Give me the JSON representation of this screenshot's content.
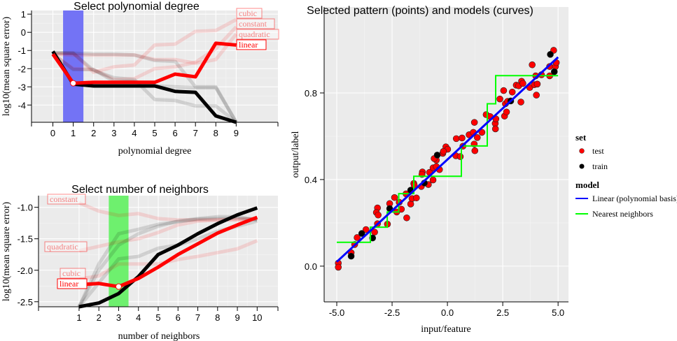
{
  "chart_data": [
    {
      "type": "line",
      "title": "Select polynomial degree",
      "xlabel": "polynomial degree",
      "ylabel": "log10(mean square error)",
      "x": [
        0,
        1,
        2,
        3,
        4,
        5,
        6,
        7,
        8,
        9
      ],
      "xticks": [
        "0",
        "1",
        "2",
        "3",
        "4",
        "5",
        "6",
        "7",
        "8",
        "9"
      ],
      "yticks": [
        "1",
        "0",
        "-1",
        "-2",
        "-3",
        "-4"
      ],
      "ytick_values": [
        1,
        0,
        -1,
        -2,
        -3,
        -4
      ],
      "xlim": [
        -1.05,
        11.05
      ],
      "ylim": [
        -4.95,
        1.2
      ],
      "selected_x": 1,
      "selected_band_color": "#7373f5",
      "grid": true,
      "series": [
        {
          "name": "cubic",
          "role": "faint-red",
          "values": [
            -1.2,
            -1.15,
            -2.2,
            -1.9,
            -1.8,
            -0.7,
            -0.65,
            0.05,
            0.1,
            0.7
          ]
        },
        {
          "name": "constant",
          "role": "faint-red",
          "values": [
            -1.2,
            -2.0,
            -2.05,
            -2.6,
            -2.55,
            -2.0,
            -1.9,
            -1.65,
            -0.9,
            0.3
          ]
        },
        {
          "name": "quadratic",
          "role": "faint-red",
          "values": [
            -1.2,
            -1.25,
            -1.25,
            -1.25,
            -1.25,
            -1.5,
            -1.5,
            -1.7,
            -1.5,
            -0.1
          ]
        },
        {
          "role": "faint-gray",
          "values": [
            -1.1,
            -1.15,
            -2.1,
            -2.5,
            -2.6,
            -3.7,
            -3.75,
            -4.05,
            -4.05,
            -4.95
          ]
        },
        {
          "role": "faint-gray",
          "values": [
            -1.2,
            -2.05,
            -2.05,
            -2.7,
            -2.7,
            -2.95,
            -3.0,
            -3.05,
            -3.05,
            -4.95
          ]
        },
        {
          "role": "faint-gray",
          "values": [
            -1.15,
            -1.15,
            -1.2,
            -1.2,
            -1.25,
            -1.55,
            -1.6,
            -3.0,
            -3.0,
            -4.95
          ]
        },
        {
          "role": "bold-black",
          "values": [
            -1.05,
            -2.85,
            -2.95,
            -2.95,
            -2.95,
            -2.95,
            -3.25,
            -3.3,
            -4.6,
            -4.95
          ]
        },
        {
          "name": "linear",
          "role": "bold-red",
          "values": [
            -1.2,
            -2.8,
            -2.75,
            -2.75,
            -2.75,
            -2.75,
            -2.3,
            -2.45,
            -0.6,
            -0.7
          ]
        }
      ],
      "labels": [
        "cubic",
        "constant",
        "quadratic",
        "linear"
      ]
    },
    {
      "type": "line",
      "title": "Select number of neighbors",
      "xlabel": "number of neighbors",
      "ylabel": "log10(mean square error)",
      "x": [
        1,
        2,
        3,
        4,
        5,
        6,
        7,
        8,
        9,
        10
      ],
      "xticks": [
        "1",
        "2",
        "3",
        "4",
        "5",
        "6",
        "7",
        "8",
        "9",
        "10"
      ],
      "yticks": [
        "-1.0",
        "-1.5",
        "-2.0",
        "-2.5"
      ],
      "ytick_values": [
        -1.0,
        -1.5,
        -2.0,
        -2.5
      ],
      "xlim": [
        -1.05,
        11.05
      ],
      "ylim": [
        -2.58,
        -0.815
      ],
      "selected_x": 3,
      "selected_band_color": "#6ef06e",
      "grid": true,
      "series": [
        {
          "name": "constant",
          "role": "faint-red",
          "values": [
            -0.93,
            -1.06,
            -1.13,
            -1.1,
            -1.18,
            -1.2,
            -1.2,
            -1.2,
            -1.2,
            -1.18
          ]
        },
        {
          "name": "quadratic",
          "role": "faint-red",
          "values": [
            -1.69,
            -1.62,
            -1.55,
            -1.5,
            -1.4,
            -1.28,
            -1.22,
            -1.2,
            -1.19,
            -1.18
          ]
        },
        {
          "name": "cubic",
          "role": "faint-red",
          "values": [
            -2.14,
            -2.09,
            -1.9,
            -1.9,
            -1.9,
            -1.83,
            -1.78,
            -1.72,
            -1.66,
            -1.53
          ]
        },
        {
          "role": "faint-gray",
          "values": [
            -2.6,
            -1.9,
            -1.42,
            -1.35,
            -1.27,
            -1.23,
            -1.19,
            -1.18,
            -1.17,
            -1.2
          ]
        },
        {
          "role": "faint-gray",
          "values": [
            -2.6,
            -2.2,
            -1.82,
            -1.78,
            -1.65,
            -1.6,
            -1.5,
            -1.38,
            -1.3,
            -1.22
          ]
        },
        {
          "role": "faint-gray",
          "values": [
            -2.6,
            -2.0,
            -1.6,
            -1.42,
            -1.3,
            -1.22,
            -1.18,
            -1.15,
            -1.15,
            -1.2
          ]
        },
        {
          "role": "bold-black",
          "values": [
            -2.6,
            -2.52,
            -2.37,
            -2.1,
            -1.75,
            -1.6,
            -1.42,
            -1.26,
            -1.12,
            -1.01
          ]
        },
        {
          "name": "linear",
          "role": "bold-red",
          "values": [
            -2.23,
            -2.21,
            -2.26,
            -2.13,
            -1.95,
            -1.75,
            -1.58,
            -1.41,
            -1.28,
            -1.16
          ]
        }
      ],
      "labels": [
        "constant",
        "quadratic",
        "cubic",
        "linear"
      ]
    },
    {
      "type": "scatter",
      "title": "Selected pattern (points) and models (curves)",
      "xlabel": "input/feature",
      "ylabel": "output/label",
      "xticks": [
        "-5.0",
        "-2.5",
        "0.0",
        "2.5",
        "5.0"
      ],
      "xtick_values": [
        -5,
        -2.5,
        0,
        2.5,
        5
      ],
      "yticks": [
        "0.0",
        "0.4",
        "0.8"
      ],
      "ytick_values": [
        0,
        0.4,
        0.8
      ],
      "xlim": [
        -5.57,
        5.47
      ],
      "ylim": [
        -0.165,
        1.197
      ],
      "grid": true,
      "legend": {
        "position": "right",
        "set_title": "set",
        "set_items": [
          {
            "label": "test",
            "color": "#ff0000"
          },
          {
            "label": "train",
            "color": "#000000"
          }
        ],
        "model_title": "model",
        "model_items": [
          {
            "label": "Linear (polynomial basis)",
            "color": "#0000ff"
          },
          {
            "label": "Nearest neighbors",
            "color": "#00ff00"
          }
        ]
      },
      "points": {
        "test": [
          [
            -4.93,
            0.014
          ],
          [
            -4.93,
            -0.005
          ],
          [
            -4.35,
            0.062
          ],
          [
            -4.19,
            0.1
          ],
          [
            -4.08,
            0.132
          ],
          [
            -3.68,
            0.169
          ],
          [
            -3.29,
            0.157
          ],
          [
            -3.16,
            0.196
          ],
          [
            -3.16,
            0.269
          ],
          [
            -3.21,
            0.248
          ],
          [
            -3.13,
            0.236
          ],
          [
            -2.71,
            0.194
          ],
          [
            -2.61,
            0.289
          ],
          [
            -2.39,
            0.317
          ],
          [
            -2.29,
            0.25
          ],
          [
            -2.08,
            0.263
          ],
          [
            -1.84,
            0.223
          ],
          [
            -2.18,
            0.295
          ],
          [
            -1.66,
            0.287
          ],
          [
            -1.6,
            0.312
          ],
          [
            -1.4,
            0.315
          ],
          [
            -1.87,
            0.334
          ],
          [
            -1.52,
            0.382
          ],
          [
            -1.5,
            0.374
          ],
          [
            -1.18,
            0.368
          ],
          [
            -1.13,
            0.435
          ],
          [
            -1.15,
            0.424
          ],
          [
            -0.86,
            0.377
          ],
          [
            -0.65,
            0.398
          ],
          [
            -0.81,
            0.433
          ],
          [
            -0.65,
            0.454
          ],
          [
            -0.5,
            0.46
          ],
          [
            -0.36,
            0.446
          ],
          [
            -0.5,
            0.49
          ],
          [
            -0.6,
            0.497
          ],
          [
            -0.21,
            0.521
          ],
          [
            -0.07,
            0.551
          ],
          [
            0.01,
            0.54
          ],
          [
            -0.18,
            0.53
          ],
          [
            0.38,
            0.51
          ],
          [
            0.58,
            0.506
          ],
          [
            0.4,
            0.589
          ],
          [
            0.66,
            0.592
          ],
          [
            0.7,
            0.554
          ],
          [
            0.98,
            0.607
          ],
          [
            1.17,
            0.618
          ],
          [
            1.35,
            0.594
          ],
          [
            1.56,
            0.618
          ],
          [
            1.22,
            0.664
          ],
          [
            1.21,
            0.564
          ],
          [
            1.24,
            0.533
          ],
          [
            1.75,
            0.7
          ],
          [
            1.93,
            0.691
          ],
          [
            2.16,
            0.659
          ],
          [
            2.17,
            0.634
          ],
          [
            2.19,
            0.68
          ],
          [
            2.37,
            0.772
          ],
          [
            2.54,
            0.811
          ],
          [
            2.58,
            0.693
          ],
          [
            2.67,
            0.712
          ],
          [
            2.62,
            0.75
          ],
          [
            2.72,
            0.761
          ],
          [
            2.93,
            0.804
          ],
          [
            3.32,
            0.758
          ],
          [
            3.11,
            0.836
          ],
          [
            3.22,
            0.833
          ],
          [
            3.35,
            0.854
          ],
          [
            3.41,
            0.844
          ],
          [
            3.72,
            0.825
          ],
          [
            3.83,
            0.93
          ],
          [
            3.93,
            0.838
          ],
          [
            4.06,
            0.841
          ],
          [
            3.99,
            0.879
          ],
          [
            4.02,
            0.79
          ],
          [
            4.25,
            0.884
          ],
          [
            4.62,
            0.879
          ],
          [
            4.62,
            0.922
          ],
          [
            4.88,
            0.922
          ],
          [
            4.92,
            0.94
          ],
          [
            4.8,
            0.997
          ]
        ],
        "train": [
          [
            -4.35,
            0.046
          ],
          [
            -3.87,
            0.151
          ],
          [
            -3.38,
            0.13
          ],
          [
            -2.61,
            0.266
          ],
          [
            -1.66,
            0.351
          ],
          [
            -1.04,
            0.384
          ],
          [
            -0.46,
            0.513
          ],
          [
            2.86,
            0.763
          ],
          [
            4.65,
            0.978
          ],
          [
            4.83,
            0.898
          ]
        ]
      },
      "linear_model": [
        [
          -5.0,
          0.02
        ],
        [
          5.0,
          0.965
        ]
      ],
      "nearest_neighbors_model": [
        [
          -5.0,
          0.11
        ],
        [
          -3.48,
          0.11
        ],
        [
          -3.48,
          0.18
        ],
        [
          -2.72,
          0.18
        ],
        [
          -2.72,
          0.25
        ],
        [
          -2.2,
          0.25
        ],
        [
          -2.2,
          0.335
        ],
        [
          -1.52,
          0.335
        ],
        [
          -1.52,
          0.415
        ],
        [
          0.63,
          0.415
        ],
        [
          0.63,
          0.555
        ],
        [
          1.8,
          0.555
        ],
        [
          1.8,
          0.75
        ],
        [
          2.18,
          0.75
        ],
        [
          2.18,
          0.88
        ],
        [
          5.0,
          0.88
        ]
      ]
    }
  ]
}
